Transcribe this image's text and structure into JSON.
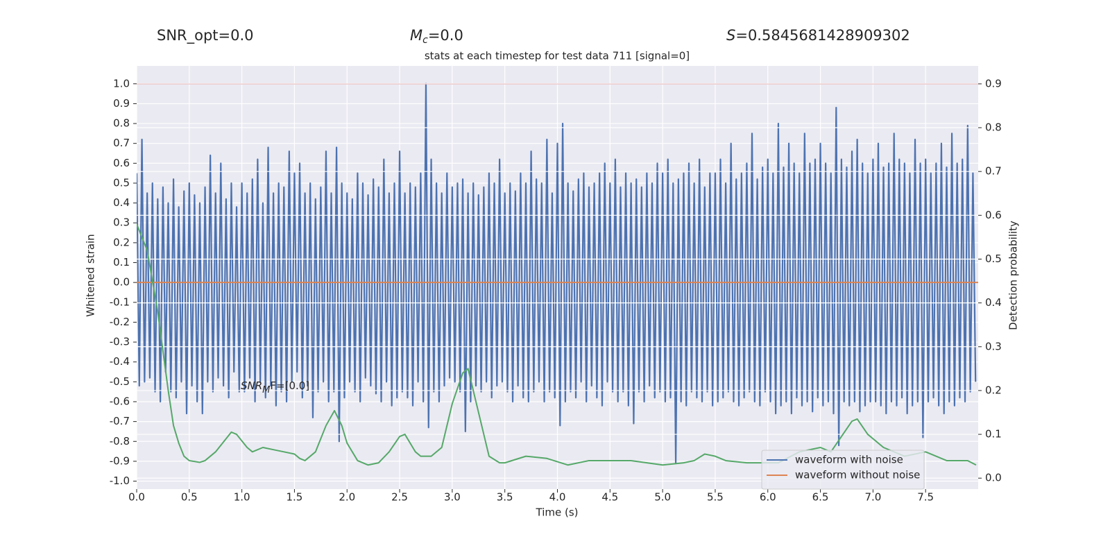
{
  "chart_data": {
    "type": "line",
    "title": "stats at each timestep for test data 711 [signal=0]",
    "top_labels": [
      {
        "text": "SNR_opt=0.0"
      },
      {
        "symbol": "M",
        "sub": "c",
        "rest": "=0.0"
      },
      {
        "symbol": "S",
        "rest": "=0.5845681428909302"
      }
    ],
    "annotation": {
      "symbol": "SNR",
      "sub": "M",
      "rest": "F=[0.0]"
    },
    "xlabel": "Time (s)",
    "ylabel": "Whitened strain",
    "y2label": "Detection probability",
    "xlim": [
      0,
      8
    ],
    "ylim": [
      -1.04,
      1.09
    ],
    "y2lim": [
      -0.025,
      0.941
    ],
    "xticks": [
      {
        "value": 0,
        "label": "0.0"
      },
      0.5,
      {
        "value": 1,
        "label": "1.0"
      },
      1.5,
      {
        "value": 2,
        "label": "2.0"
      },
      2.5,
      {
        "value": 3,
        "label": "3.0"
      },
      3.5,
      {
        "value": 4,
        "label": "4.0"
      },
      4.5,
      {
        "value": 5,
        "label": "5.0"
      },
      5.5,
      {
        "value": 6,
        "label": "6.0"
      },
      6.5,
      {
        "value": 7,
        "label": "7.0"
      },
      7.5
    ],
    "yticks": [
      {
        "value": -1,
        "label": "-1.0"
      },
      -0.9,
      -0.8,
      -0.7,
      -0.6,
      -0.5,
      -0.4,
      -0.3,
      -0.2,
      -0.1,
      {
        "value": 0,
        "label": "0.0"
      },
      0.1,
      0.2,
      0.3,
      0.4,
      0.5,
      0.6,
      0.7,
      0.8,
      0.9,
      {
        "value": 1,
        "label": "1.0"
      }
    ],
    "y2ticks": [
      {
        "value": 0,
        "label": "0.0"
      },
      0.1,
      0.2,
      0.3,
      0.4,
      0.5,
      0.6,
      0.7,
      0.8,
      0.9
    ],
    "grid": true,
    "legend": "lower right",
    "background": "#eaeaf2",
    "hlines": [
      {
        "value": 0.9,
        "axis": "y2",
        "color": "#c44e52"
      }
    ],
    "series": [
      {
        "name": "waveform with noise",
        "color": "#4c72b0",
        "x": [
          0,
          0.025,
          0.05,
          0.075,
          0.1,
          0.125,
          0.15,
          0.175,
          0.2,
          0.225,
          0.25,
          0.275,
          0.3,
          0.325,
          0.35,
          0.375,
          0.4,
          0.425,
          0.45,
          0.475,
          0.5,
          0.525,
          0.55,
          0.575,
          0.6,
          0.625,
          0.65,
          0.675,
          0.7,
          0.725,
          0.75,
          0.775,
          0.8,
          0.825,
          0.85,
          0.875,
          0.9,
          0.925,
          0.95,
          0.975,
          1,
          1.025,
          1.05,
          1.075,
          1.1,
          1.125,
          1.15,
          1.175,
          1.2,
          1.225,
          1.25,
          1.275,
          1.3,
          1.325,
          1.35,
          1.375,
          1.4,
          1.425,
          1.45,
          1.475,
          1.5,
          1.525,
          1.55,
          1.575,
          1.6,
          1.625,
          1.65,
          1.675,
          1.7,
          1.725,
          1.75,
          1.775,
          1.8,
          1.825,
          1.85,
          1.875,
          1.9,
          1.925,
          1.95,
          1.975,
          2,
          2.025,
          2.05,
          2.075,
          2.1,
          2.125,
          2.15,
          2.175,
          2.2,
          2.225,
          2.25,
          2.275,
          2.3,
          2.325,
          2.35,
          2.375,
          2.4,
          2.425,
          2.45,
          2.475,
          2.5,
          2.525,
          2.55,
          2.575,
          2.6,
          2.625,
          2.65,
          2.675,
          2.7,
          2.725,
          2.75,
          2.775,
          2.8,
          2.825,
          2.85,
          2.875,
          2.9,
          2.925,
          2.95,
          2.975,
          3,
          3.025,
          3.05,
          3.075,
          3.1,
          3.125,
          3.15,
          3.175,
          3.2,
          3.225,
          3.25,
          3.275,
          3.3,
          3.325,
          3.35,
          3.375,
          3.4,
          3.425,
          3.45,
          3.475,
          3.5,
          3.525,
          3.55,
          3.575,
          3.6,
          3.625,
          3.65,
          3.675,
          3.7,
          3.725,
          3.75,
          3.775,
          3.8,
          3.825,
          3.85,
          3.875,
          3.9,
          3.925,
          3.95,
          3.975,
          4,
          4.025,
          4.05,
          4.075,
          4.1,
          4.125,
          4.15,
          4.175,
          4.2,
          4.225,
          4.25,
          4.275,
          4.3,
          4.325,
          4.35,
          4.375,
          4.4,
          4.425,
          4.45,
          4.475,
          4.5,
          4.525,
          4.55,
          4.575,
          4.6,
          4.625,
          4.65,
          4.675,
          4.7,
          4.725,
          4.75,
          4.775,
          4.8,
          4.825,
          4.85,
          4.875,
          4.9,
          4.925,
          4.95,
          4.975,
          5,
          5.025,
          5.05,
          5.075,
          5.1,
          5.125,
          5.15,
          5.175,
          5.2,
          5.225,
          5.25,
          5.275,
          5.3,
          5.325,
          5.35,
          5.375,
          5.4,
          5.425,
          5.45,
          5.475,
          5.5,
          5.525,
          5.55,
          5.575,
          5.6,
          5.625,
          5.65,
          5.675,
          5.7,
          5.725,
          5.75,
          5.775,
          5.8,
          5.825,
          5.85,
          5.875,
          5.9,
          5.925,
          5.95,
          5.975,
          6,
          6.025,
          6.05,
          6.075,
          6.1,
          6.125,
          6.15,
          6.175,
          6.2,
          6.225,
          6.25,
          6.275,
          6.3,
          6.325,
          6.35,
          6.375,
          6.4,
          6.425,
          6.45,
          6.475,
          6.5,
          6.525,
          6.55,
          6.575,
          6.6,
          6.625,
          6.65,
          6.675,
          6.7,
          6.725,
          6.75,
          6.775,
          6.8,
          6.825,
          6.85,
          6.875,
          6.9,
          6.925,
          6.95,
          6.975,
          7,
          7.025,
          7.05,
          7.075,
          7.1,
          7.125,
          7.15,
          7.175,
          7.2,
          7.225,
          7.25,
          7.275,
          7.3,
          7.325,
          7.35,
          7.375,
          7.4,
          7.425,
          7.45,
          7.475,
          7.5,
          7.525,
          7.55,
          7.575,
          7.6,
          7.625,
          7.65,
          7.675,
          7.7,
          7.725,
          7.75,
          7.775,
          7.8,
          7.825,
          7.85,
          7.875,
          7.9,
          7.925,
          7.95,
          7.975
        ],
        "values": [
          0.55,
          -0.52,
          0.72,
          -0.5,
          0.45,
          -0.48,
          0.5,
          -0.55,
          0.42,
          -0.6,
          0.48,
          -0.45,
          0.4,
          -0.55,
          0.52,
          -0.58,
          0.38,
          -0.5,
          0.46,
          -0.66,
          0.5,
          -0.52,
          0.44,
          -0.6,
          0.4,
          -0.66,
          0.48,
          -0.5,
          0.64,
          -0.55,
          0.45,
          -0.48,
          0.6,
          -0.52,
          0.42,
          -0.58,
          0.5,
          -0.45,
          0.38,
          -0.55,
          0.5,
          -0.55,
          0.45,
          -0.48,
          0.52,
          -0.6,
          0.62,
          -0.5,
          0.4,
          -0.58,
          0.68,
          -0.52,
          0.45,
          -0.62,
          0.5,
          -0.55,
          0.48,
          -0.6,
          0.66,
          -0.5,
          0.55,
          -0.45,
          0.6,
          -0.58,
          0.45,
          -0.52,
          0.5,
          -0.68,
          0.42,
          -0.55,
          0.48,
          -0.5,
          0.66,
          -0.6,
          0.45,
          -0.55,
          0.68,
          -0.8,
          0.5,
          -0.58,
          0.45,
          -0.5,
          0.42,
          -0.55,
          0.55,
          -0.6,
          0.5,
          -0.48,
          0.44,
          -0.52,
          0.52,
          -0.56,
          0.48,
          -0.6,
          0.62,
          -0.5,
          0.45,
          -0.62,
          0.5,
          -0.58,
          0.66,
          -0.55,
          0.45,
          -0.58,
          0.5,
          -0.62,
          0.48,
          -0.5,
          0.55,
          -0.6,
          1.0,
          -0.73,
          0.62,
          -0.55,
          0.5,
          -0.6,
          0.45,
          -0.52,
          0.55,
          -0.48,
          0.48,
          -0.5,
          0.5,
          -0.55,
          0.52,
          -0.75,
          0.45,
          -0.6,
          0.5,
          -0.52,
          0.44,
          -0.55,
          0.48,
          -0.5,
          0.55,
          -0.58,
          0.5,
          -0.52,
          0.62,
          -0.5,
          0.45,
          -0.55,
          0.5,
          -0.6,
          0.46,
          -0.52,
          0.55,
          -0.58,
          0.5,
          -0.6,
          0.66,
          -0.55,
          0.52,
          -0.5,
          0.5,
          -0.6,
          0.72,
          -0.55,
          0.45,
          -0.58,
          0.7,
          -0.72,
          0.8,
          -0.6,
          0.5,
          -0.55,
          0.46,
          -0.58,
          0.52,
          -0.5,
          0.55,
          -0.6,
          0.48,
          -0.52,
          0.5,
          -0.58,
          0.55,
          -0.62,
          0.6,
          -0.5,
          0.5,
          -0.55,
          0.62,
          -0.6,
          0.48,
          -0.55,
          0.55,
          -0.62,
          0.5,
          -0.71,
          0.52,
          -0.55,
          0.48,
          -0.6,
          0.55,
          -0.52,
          0.5,
          -0.58,
          0.6,
          -0.55,
          0.55,
          -0.6,
          0.62,
          -0.58,
          0.5,
          -0.91,
          0.52,
          -0.6,
          0.55,
          -0.62,
          0.6,
          -0.55,
          0.5,
          -0.58,
          0.62,
          -0.6,
          0.48,
          -0.55,
          0.55,
          -0.62,
          0.55,
          -0.6,
          0.62,
          -0.58,
          0.5,
          -0.55,
          0.7,
          -0.6,
          0.52,
          -0.62,
          0.55,
          -0.58,
          0.6,
          -0.55,
          0.75,
          -0.6,
          0.52,
          -0.62,
          0.58,
          -0.55,
          0.62,
          -0.6,
          0.55,
          -0.66,
          0.8,
          -0.62,
          0.58,
          -0.6,
          0.7,
          -0.66,
          0.6,
          -0.58,
          0.55,
          -0.62,
          0.75,
          -0.6,
          0.6,
          -0.65,
          0.62,
          -0.58,
          0.7,
          -0.62,
          0.6,
          -0.6,
          0.55,
          -0.66,
          0.88,
          -0.82,
          0.62,
          -0.6,
          0.58,
          -0.62,
          0.66,
          -0.6,
          0.72,
          -0.65,
          0.6,
          -0.62,
          0.55,
          -0.6,
          0.62,
          -0.6,
          0.7,
          -0.62,
          0.58,
          -0.66,
          0.6,
          -0.6,
          0.75,
          -0.62,
          0.62,
          -0.58,
          0.6,
          -0.66,
          0.55,
          -0.62,
          0.72,
          -0.6,
          0.6,
          -0.78,
          0.62,
          -0.6,
          0.55,
          -0.58,
          0.6,
          -0.62,
          0.7,
          -0.66,
          0.58,
          -0.6,
          0.75,
          -0.62,
          0.6,
          -0.58,
          0.62,
          -0.6,
          0.79,
          -0.55,
          0.55,
          -0.5
        ]
      },
      {
        "name": "waveform without noise",
        "color": "#dd8452",
        "x": [
          0,
          8
        ],
        "values": [
          0,
          0
        ]
      },
      {
        "color": "#55a868",
        "axis": "y2",
        "x": [
          0,
          0.1,
          0.2,
          0.3,
          0.35,
          0.4,
          0.45,
          0.5,
          0.6,
          0.65,
          0.75,
          0.85,
          0.9,
          0.95,
          1.05,
          1.1,
          1.2,
          1.3,
          1.4,
          1.5,
          1.55,
          1.6,
          1.7,
          1.8,
          1.88,
          1.95,
          2.0,
          2.1,
          2.2,
          2.3,
          2.4,
          2.5,
          2.55,
          2.65,
          2.7,
          2.8,
          2.9,
          3.0,
          3.1,
          3.15,
          3.25,
          3.35,
          3.45,
          3.5,
          3.7,
          3.9,
          4.1,
          4.3,
          4.5,
          4.7,
          5.0,
          5.2,
          5.3,
          5.4,
          5.5,
          5.6,
          5.8,
          6.1,
          6.3,
          6.5,
          6.6,
          6.8,
          6.85,
          6.95,
          7.1,
          7.3,
          7.5,
          7.7,
          7.9,
          7.98
        ],
        "values": [
          0.58,
          0.52,
          0.38,
          0.2,
          0.12,
          0.08,
          0.05,
          0.04,
          0.036,
          0.04,
          0.06,
          0.09,
          0.105,
          0.1,
          0.07,
          0.06,
          0.07,
          0.065,
          0.06,
          0.055,
          0.045,
          0.04,
          0.06,
          0.12,
          0.154,
          0.12,
          0.08,
          0.04,
          0.03,
          0.035,
          0.06,
          0.095,
          0.1,
          0.06,
          0.05,
          0.05,
          0.07,
          0.17,
          0.24,
          0.25,
          0.15,
          0.05,
          0.035,
          0.035,
          0.05,
          0.045,
          0.03,
          0.04,
          0.04,
          0.04,
          0.03,
          0.035,
          0.04,
          0.055,
          0.05,
          0.04,
          0.035,
          0.035,
          0.06,
          0.07,
          0.06,
          0.13,
          0.135,
          0.1,
          0.07,
          0.05,
          0.06,
          0.04,
          0.04,
          0.03
        ]
      }
    ]
  }
}
